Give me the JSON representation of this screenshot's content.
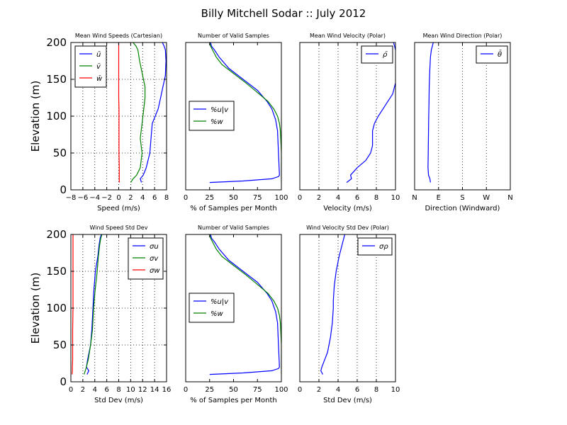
{
  "figure": {
    "title": "Billy Mitchell Sodar :: July 2012"
  },
  "colors": {
    "blue": "#0000ff",
    "green": "#008000",
    "red": "#ff0000",
    "axis": "#000000",
    "grid": "#000000"
  },
  "chart_data": [
    {
      "id": "p1",
      "type": "line",
      "title": "Mean Wind Speeds (Cartesian)",
      "xlabel": "Speed (m/s)",
      "ylabel": "Elevation (m)",
      "xlim": [
        -8,
        8
      ],
      "ylim": [
        0,
        200
      ],
      "xticks": [
        -8,
        -6,
        -4,
        -2,
        0,
        2,
        4,
        6,
        8
      ],
      "xticklabels": [
        "−8",
        "−6",
        "−4",
        "−2",
        "0",
        "2",
        "4",
        "6",
        "8"
      ],
      "yticks": [
        0,
        50,
        100,
        150,
        200
      ],
      "yticklabels": [
        "0",
        "50",
        "100",
        "150",
        "200"
      ],
      "grid": true,
      "legend": "top-left",
      "series": [
        {
          "name": "ū",
          "color": "blue",
          "x": [
            3.8,
            3.6,
            4.1,
            4.6,
            5.2,
            5.4,
            5.6,
            6.6,
            7.0,
            7.4,
            7.8,
            7.9,
            7.8,
            7.6,
            7.3
          ],
          "y": [
            10,
            15,
            20,
            30,
            50,
            70,
            90,
            110,
            125,
            140,
            155,
            175,
            190,
            195,
            200
          ]
        },
        {
          "name": "v̄",
          "color": "green",
          "x": [
            2.0,
            2.4,
            3.0,
            3.6,
            3.9,
            3.6,
            3.9,
            4.2,
            4.4,
            4.4,
            4.0,
            3.5,
            3.2,
            2.9,
            2.4
          ],
          "y": [
            10,
            15,
            20,
            30,
            50,
            70,
            90,
            110,
            125,
            140,
            155,
            175,
            190,
            195,
            200
          ]
        },
        {
          "name": "w̄",
          "color": "red",
          "x": [
            0.1,
            0.1,
            0.1,
            0.1,
            0.05,
            0.05,
            0.05,
            0.05,
            0.0,
            0.0,
            0.0,
            0.0,
            0.0,
            0.0,
            0.0
          ],
          "y": [
            10,
            15,
            20,
            30,
            50,
            70,
            90,
            110,
            125,
            140,
            155,
            175,
            190,
            195,
            200
          ]
        }
      ]
    },
    {
      "id": "p2",
      "type": "line",
      "title": "Number of Valid Samples",
      "xlabel": "% of Samples per Month",
      "ylabel": "",
      "xlim": [
        0,
        100
      ],
      "ylim": [
        0,
        200
      ],
      "xticks": [
        0,
        25,
        50,
        75,
        100
      ],
      "xticklabels": [
        "0",
        "25",
        "50",
        "75",
        "100"
      ],
      "yticks": [],
      "yticklabels": [],
      "grid": false,
      "legend": "center-left",
      "series": [
        {
          "name": "%u|v",
          "color": "blue",
          "x": [
            25,
            60,
            90,
            97,
            98,
            97,
            96,
            94,
            90,
            85,
            75,
            60,
            45,
            35,
            30,
            27,
            26
          ],
          "y": [
            10,
            12,
            15,
            18,
            20,
            50,
            80,
            95,
            110,
            120,
            135,
            150,
            165,
            180,
            190,
            195,
            200
          ]
        },
        {
          "name": "%w",
          "color": "green",
          "x": [
            100,
            100,
            100,
            99,
            98,
            96,
            92,
            86,
            77,
            63,
            48,
            38,
            32,
            28,
            26,
            25
          ],
          "y": [
            10,
            20,
            50,
            80,
            90,
            100,
            110,
            120,
            130,
            145,
            160,
            170,
            180,
            190,
            195,
            200
          ]
        }
      ]
    },
    {
      "id": "p3",
      "type": "line",
      "title": "Mean Wind Velocity (Polar)",
      "xlabel": "Velocity (m/s)",
      "ylabel": "",
      "xlim": [
        0,
        10
      ],
      "ylim": [
        0,
        200
      ],
      "xticks": [
        0,
        2,
        4,
        6,
        8,
        10
      ],
      "xticklabels": [
        "0",
        "2",
        "4",
        "6",
        "8",
        "10"
      ],
      "yticks": [],
      "yticklabels": [],
      "grid": true,
      "legend": "top-right",
      "series": [
        {
          "name": "ρ̄",
          "color": "blue",
          "x": [
            4.9,
            5.4,
            5.3,
            6.0,
            6.9,
            7.4,
            7.6,
            7.6,
            7.8,
            8.2,
            8.7,
            9.2,
            9.7,
            10.0,
            10.6,
            10.2,
            10.0,
            9.8
          ],
          "y": [
            10,
            15,
            20,
            30,
            40,
            50,
            60,
            80,
            90,
            100,
            110,
            120,
            130,
            145,
            160,
            170,
            190,
            200
          ]
        }
      ]
    },
    {
      "id": "p4",
      "type": "line",
      "title": "Mean Wind Direction (Polar)",
      "xlabel": "Direction (Windward)",
      "ylabel": "",
      "xlim": [
        0,
        4
      ],
      "ylim": [
        0,
        200
      ],
      "xticks": [
        0,
        1,
        2,
        3,
        4
      ],
      "xticklabels": [
        "N",
        "E",
        "S",
        "W",
        "N"
      ],
      "yticks": [],
      "yticklabels": [],
      "grid": true,
      "legend": "top-right",
      "series": [
        {
          "name": "θ̄",
          "color": "blue",
          "x": [
            0.66,
            0.64,
            0.58,
            0.56,
            0.57,
            0.58,
            0.59,
            0.6,
            0.61,
            0.63,
            0.66,
            0.7,
            0.74,
            0.78
          ],
          "y": [
            10,
            15,
            20,
            30,
            50,
            80,
            100,
            120,
            140,
            160,
            180,
            190,
            195,
            200
          ]
        }
      ]
    },
    {
      "id": "p5",
      "type": "line",
      "title": "Wind Speed Std Dev",
      "xlabel": "Std Dev (m/s)",
      "ylabel": "Elevation (m)",
      "xlim": [
        0,
        16
      ],
      "ylim": [
        0,
        200
      ],
      "xticks": [
        0,
        2,
        4,
        6,
        8,
        10,
        12,
        14,
        16
      ],
      "xticklabels": [
        "0",
        "2",
        "4",
        "6",
        "8",
        "10",
        "12",
        "14",
        "16"
      ],
      "yticks": [
        0,
        50,
        100,
        150,
        200
      ],
      "yticklabels": [
        "0",
        "50",
        "100",
        "150",
        "200"
      ],
      "grid": true,
      "legend": "top-right",
      "series": [
        {
          "name": "σu",
          "color": "blue",
          "x": [
            2.7,
            3.0,
            2.6,
            2.8,
            3.3,
            3.5,
            3.7,
            3.8,
            4.1,
            4.5,
            4.7,
            4.9,
            5.1
          ],
          "y": [
            10,
            15,
            20,
            30,
            50,
            70,
            100,
            120,
            150,
            170,
            185,
            195,
            200
          ]
        },
        {
          "name": "σv",
          "color": "green",
          "x": [
            2.2,
            2.4,
            2.6,
            2.9,
            3.3,
            3.6,
            3.8,
            4.0,
            4.4,
            4.6,
            4.8,
            5.0,
            5.2
          ],
          "y": [
            10,
            15,
            20,
            30,
            50,
            70,
            100,
            120,
            150,
            170,
            185,
            195,
            200
          ]
        },
        {
          "name": "σw",
          "color": "red",
          "x": [
            0.2,
            0.25,
            0.25,
            0.3,
            0.3,
            0.3,
            0.35,
            0.35,
            0.35,
            0.35,
            0.35,
            0.35,
            0.35
          ],
          "y": [
            10,
            15,
            20,
            30,
            50,
            70,
            100,
            120,
            150,
            170,
            185,
            195,
            200
          ]
        }
      ]
    },
    {
      "id": "p6",
      "type": "line",
      "title": "Number of Valid Samples",
      "xlabel": "% of Samples per Month",
      "ylabel": "",
      "xlim": [
        0,
        100
      ],
      "ylim": [
        0,
        200
      ],
      "xticks": [
        0,
        25,
        50,
        75,
        100
      ],
      "xticklabels": [
        "0",
        "25",
        "50",
        "75",
        "100"
      ],
      "yticks": [],
      "yticklabels": [],
      "grid": false,
      "legend": "center-left",
      "series": [
        {
          "name": "%u|v",
          "color": "blue",
          "x": [
            25,
            60,
            90,
            97,
            98,
            97,
            96,
            94,
            90,
            85,
            75,
            60,
            45,
            35,
            30,
            27,
            26
          ],
          "y": [
            10,
            12,
            15,
            18,
            20,
            50,
            80,
            95,
            110,
            120,
            135,
            150,
            165,
            180,
            190,
            195,
            200
          ]
        },
        {
          "name": "%w",
          "color": "green",
          "x": [
            100,
            100,
            100,
            99,
            98,
            96,
            92,
            86,
            77,
            63,
            48,
            38,
            32,
            28,
            26,
            25
          ],
          "y": [
            10,
            20,
            50,
            80,
            90,
            100,
            110,
            120,
            130,
            145,
            160,
            170,
            180,
            190,
            195,
            200
          ]
        }
      ]
    },
    {
      "id": "p7",
      "type": "line",
      "title": "Wind Velocity Std Dev (Polar)",
      "xlabel": "Std Dev (m/s)",
      "ylabel": "",
      "xlim": [
        0,
        10
      ],
      "ylim": [
        0,
        200
      ],
      "xticks": [
        0,
        2,
        4,
        6,
        8,
        10
      ],
      "xticklabels": [
        "0",
        "2",
        "4",
        "6",
        "8",
        "10"
      ],
      "yticks": [],
      "yticklabels": [],
      "grid": true,
      "legend": "top-right",
      "series": [
        {
          "name": "σρ",
          "color": "blue",
          "x": [
            2.4,
            2.2,
            2.3,
            2.6,
            2.9,
            3.2,
            3.4,
            3.5,
            3.5,
            3.6,
            3.8,
            4.1,
            4.4,
            4.6,
            4.7
          ],
          "y": [
            10,
            15,
            20,
            30,
            40,
            60,
            80,
            100,
            110,
            130,
            150,
            170,
            185,
            195,
            200
          ]
        }
      ]
    }
  ]
}
